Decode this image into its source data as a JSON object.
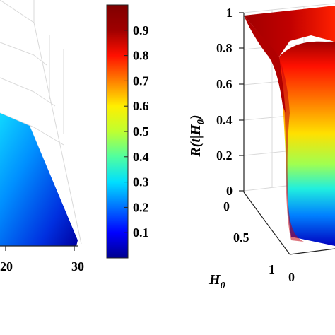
{
  "colormap": [
    "#00008f",
    "#0000ff",
    "#0070ff",
    "#00dfff",
    "#50ff9f",
    "#bfff30",
    "#ffef00",
    "#ff8000",
    "#ff1000",
    "#9f0000",
    "#800000"
  ],
  "chart_data": [
    {
      "type": "surface",
      "panel": "left",
      "xlabel": "",
      "ylabel": "",
      "zlabel": "",
      "x_ticks": [
        "20",
        "30"
      ],
      "description_values": "cropped surface colored mostly blue/cyan, values roughly 0.1 to 0.4"
    },
    {
      "type": "colorbar",
      "range": [
        0,
        1
      ],
      "ticks": [
        "0.1",
        "0.2",
        "0.3",
        "0.4",
        "0.5",
        "0.6",
        "0.7",
        "0.8",
        "0.9"
      ]
    },
    {
      "type": "surface",
      "panel": "right",
      "zlabel": "R(t|H",
      "zlabel_sub": "0",
      "zlabel_close": ")",
      "z_ticks": [
        "0",
        "0.2",
        "0.4",
        "0.6",
        "0.8",
        "1"
      ],
      "zlim": [
        0,
        1
      ],
      "xlabel": "H",
      "xlabel_sub": "0",
      "x_ticks": [
        "0",
        "0.5",
        "1"
      ],
      "y_ticks": [
        "0"
      ]
    }
  ]
}
